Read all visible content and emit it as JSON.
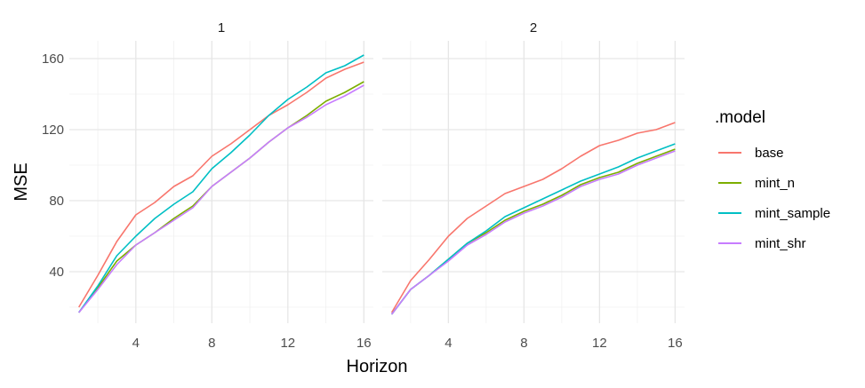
{
  "chart_data": {
    "type": "line",
    "facets": [
      "1",
      "2"
    ],
    "xlabel": "Horizon",
    "ylabel": "MSE",
    "xlim": [
      0.5,
      16.5
    ],
    "ylim": [
      11,
      170
    ],
    "x_ticks": [
      4,
      8,
      12,
      16
    ],
    "y_ticks": [
      40,
      80,
      120,
      160
    ],
    "grid": true,
    "legend": {
      "title": ".model",
      "position": "right"
    },
    "x": [
      1,
      2,
      3,
      4,
      5,
      6,
      7,
      8,
      9,
      10,
      11,
      12,
      13,
      14,
      15,
      16
    ],
    "series": [
      {
        "name": "base",
        "color": "#F8766D",
        "panels": [
          [
            20,
            38,
            57,
            72,
            79,
            88,
            94,
            105,
            112,
            120,
            128,
            134,
            141,
            149,
            154,
            158
          ],
          [
            17,
            35,
            47,
            60,
            70,
            77,
            84,
            88,
            92,
            98,
            105,
            111,
            114,
            118,
            120,
            124
          ]
        ]
      },
      {
        "name": "mint_n",
        "color": "#7CAE00",
        "panels": [
          [
            17,
            31,
            46,
            55,
            62,
            70,
            77,
            88,
            96,
            104,
            113,
            121,
            128,
            136,
            141,
            147
          ],
          [
            16,
            30,
            38,
            47,
            56,
            62,
            69,
            74,
            78,
            83,
            89,
            93,
            96,
            101,
            105,
            109
          ]
        ]
      },
      {
        "name": "mint_sample",
        "color": "#00BFC4",
        "panels": [
          [
            17,
            32,
            49,
            60,
            70,
            78,
            85,
            98,
            107,
            117,
            128,
            137,
            144,
            152,
            156,
            162
          ],
          [
            16,
            30,
            38,
            47,
            56,
            63,
            71,
            76,
            81,
            86,
            91,
            95,
            99,
            104,
            108,
            112
          ]
        ]
      },
      {
        "name": "mint_shr",
        "color": "#C77CFF",
        "panels": [
          [
            17,
            30,
            44,
            55,
            62,
            69,
            76,
            88,
            96,
            104,
            113,
            121,
            127,
            134,
            139,
            145
          ],
          [
            16,
            30,
            38,
            46,
            55,
            61,
            68,
            73,
            77,
            82,
            88,
            92,
            95,
            100,
            104,
            108
          ]
        ]
      }
    ]
  }
}
